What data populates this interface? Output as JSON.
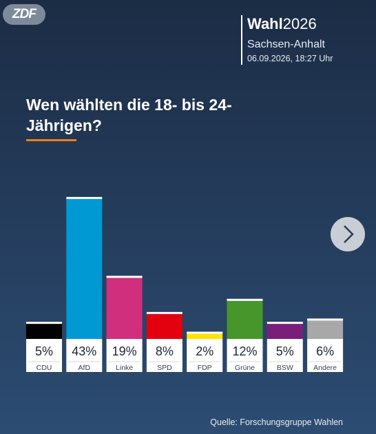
{
  "header": {
    "logo": "ZDF",
    "brand_bold": "Wahl",
    "brand_year": "2026",
    "region": "Sachsen-Anhalt",
    "timestamp": "06.09.2026, 18:27 Uhr"
  },
  "chart_data": {
    "type": "bar",
    "title": "Wen wählten die 18- bis 24-Jährigen?",
    "categories": [
      "CDU",
      "AfD",
      "Linke",
      "SPD",
      "FDP",
      "Grüne",
      "BSW",
      "Andere"
    ],
    "values": [
      5,
      43,
      19,
      8,
      2,
      12,
      5,
      6
    ],
    "value_labels": [
      "5%",
      "43%",
      "19%",
      "8%",
      "2%",
      "12%",
      "5%",
      "6%"
    ],
    "colors": [
      "#000000",
      "#0099d4",
      "#d02f7e",
      "#e3000f",
      "#ffe300",
      "#46962b",
      "#7b1e7a",
      "#a8a8a8"
    ],
    "source": "Quelle: Forschungsgruppe Wahlen"
  }
}
